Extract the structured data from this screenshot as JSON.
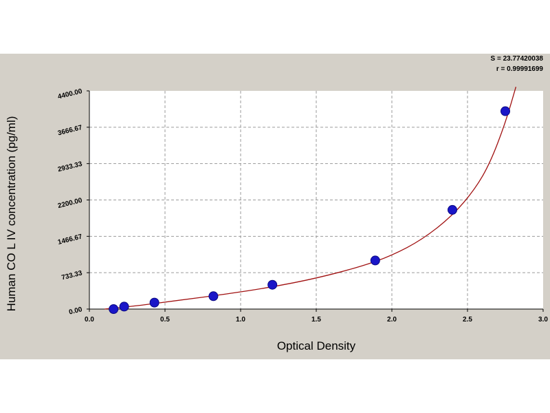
{
  "chart_data": {
    "type": "scatter",
    "title": "",
    "xlabel": "Optical Density",
    "ylabel": "Human CO L IV concentration (pg/ml)",
    "xlim": [
      0.0,
      3.0
    ],
    "ylim": [
      0.0,
      4400.0
    ],
    "x_ticks": [
      "0.0",
      "0.5",
      "1.0",
      "1.5",
      "2.0",
      "2.5",
      "3.0"
    ],
    "y_ticks": [
      "0.00",
      "733.33",
      "1466.67",
      "2200.00",
      "2933.33",
      "3666.67",
      "4400.00"
    ],
    "grid": true,
    "points": [
      {
        "x": 0.16,
        "y": 0
      },
      {
        "x": 0.23,
        "y": 50
      },
      {
        "x": 0.43,
        "y": 130
      },
      {
        "x": 0.82,
        "y": 260
      },
      {
        "x": 1.21,
        "y": 490
      },
      {
        "x": 1.89,
        "y": 980
      },
      {
        "x": 2.4,
        "y": 2000
      },
      {
        "x": 2.75,
        "y": 3990
      }
    ],
    "fit_curve": [
      {
        "x": 0.1,
        "y": -30
      },
      {
        "x": 0.3,
        "y": 60
      },
      {
        "x": 0.6,
        "y": 180
      },
      {
        "x": 0.9,
        "y": 300
      },
      {
        "x": 1.2,
        "y": 440
      },
      {
        "x": 1.5,
        "y": 620
      },
      {
        "x": 1.8,
        "y": 860
      },
      {
        "x": 2.0,
        "y": 1080
      },
      {
        "x": 2.2,
        "y": 1400
      },
      {
        "x": 2.4,
        "y": 1880
      },
      {
        "x": 2.55,
        "y": 2420
      },
      {
        "x": 2.65,
        "y": 2950
      },
      {
        "x": 2.75,
        "y": 3750
      },
      {
        "x": 2.82,
        "y": 4480
      }
    ],
    "stats": {
      "s": "S = 23.77420038",
      "r": "r = 0.99991699"
    },
    "colors": {
      "background": "#d4d0c8",
      "plot_area": "#ffffff",
      "curve": "#a01010",
      "point": "#1a16c8",
      "grid": "#9a9a9a"
    }
  }
}
